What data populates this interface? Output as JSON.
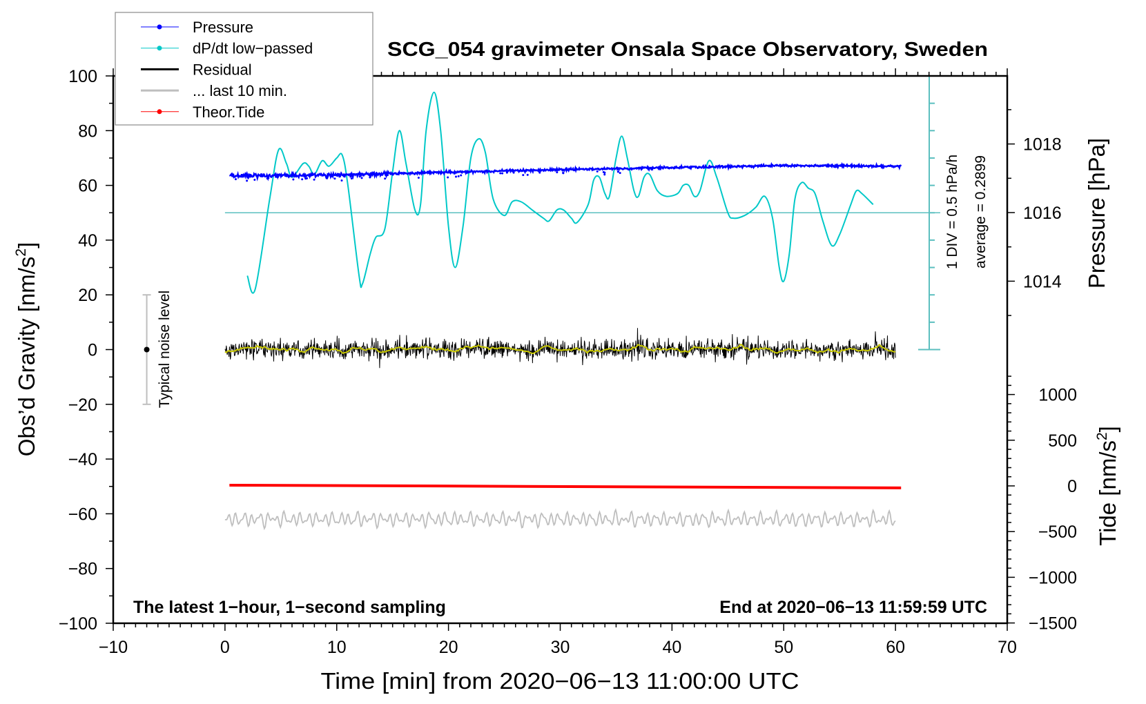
{
  "chart_data": {
    "type": "line",
    "title": "SCG_054 gravimeter Onsala Space Observatory, Sweden",
    "xlabel": "Time [min] from 2020−06−13 11:00:00 UTC",
    "ylabel": {
      "main": "Obs’d Gravity [nm/s",
      "sup": "2",
      "close": "]"
    },
    "y2label": "Pressure [hPa]",
    "y3label": {
      "main": "Tide [nm/s",
      "sup": "2",
      "close": "]"
    },
    "xlim": [
      -10,
      70
    ],
    "ylim": [
      -100,
      100
    ],
    "pressure_lim_at_gravity_0_and_100": [
      1013,
      1019
    ],
    "x_ticks": [
      "−10",
      "0",
      "10",
      "20",
      "30",
      "40",
      "50",
      "60",
      "70"
    ],
    "x_tick_values": [
      -10,
      0,
      10,
      20,
      30,
      40,
      50,
      60,
      70
    ],
    "y_ticks": [
      "−100",
      "−80",
      "−60",
      "−40",
      "−20",
      "0",
      "20",
      "40",
      "60",
      "80",
      "100"
    ],
    "y_tick_values": [
      -100,
      -80,
      -60,
      -40,
      -20,
      0,
      20,
      40,
      60,
      80,
      100
    ],
    "pressure_ticks": [
      "1014",
      "1016",
      "1018"
    ],
    "pressure_tick_values": [
      1014,
      1016,
      1018
    ],
    "tide_ticks": [
      "−1500",
      "−1000",
      "−500",
      "0",
      "500",
      "1000"
    ],
    "tide_tick_values": [
      -1500,
      -1000,
      -500,
      0,
      500,
      1000
    ],
    "legend": {
      "placement": "top-left",
      "items": [
        {
          "label": "Pressure",
          "color": "#0000ff",
          "marker": true
        },
        {
          "label": "dP/dt low−passed",
          "color": "#00c8c8",
          "marker": true
        },
        {
          "label": "Residual",
          "color": "#000000",
          "marker": false
        },
        {
          "label": "... last 10 min.",
          "color": "#bebebe",
          "marker": false
        },
        {
          "label": "Theor.Tide",
          "color": "#ff0000",
          "marker": true
        }
      ]
    },
    "annotations": {
      "bottom_left": "The latest 1−hour, 1−second sampling",
      "bottom_right": "End at 2020−06−13 11:59:59 UTC",
      "div_label": "1 DIV = 0.5 hPa/h",
      "average_label": "average = 0.2899",
      "noise_label": "Typical noise level"
    },
    "dpdt_scale": {
      "hPa_per_h_per_div": 0.5,
      "gravity_units_per_div": 10,
      "average": 0.2899,
      "reference_gravity_level": 50
    },
    "noise_bar": {
      "x": -7,
      "low": -20,
      "high": 20,
      "center": 0
    },
    "series": [
      {
        "name": "Pressure",
        "unit": "hPa",
        "color": "#0000ff",
        "trend": [
          [
            0.4,
            1017.07
          ],
          [
            10,
            1017.09
          ],
          [
            20,
            1017.18
          ],
          [
            30,
            1017.25
          ],
          [
            40,
            1017.31
          ],
          [
            50,
            1017.37
          ],
          [
            60.5,
            1017.35
          ]
        ],
        "noise_hPa": 0.03
      },
      {
        "name": "dP/dt low-passed",
        "unit": "hPa/h",
        "color": "#00c8c8",
        "points": [
          [
            2,
            -0.86
          ],
          [
            2.7,
            -1.11
          ],
          [
            4,
            0.54
          ],
          [
            4.8,
            1.44
          ],
          [
            5.5,
            1.19
          ],
          [
            6,
            0.94
          ],
          [
            7,
            1.19
          ],
          [
            7.5,
            1.14
          ],
          [
            8,
            0.99
          ],
          [
            8.7,
            1.24
          ],
          [
            9.3,
            1.14
          ],
          [
            10,
            1.29
          ],
          [
            10.5,
            1.34
          ],
          [
            11,
            0.79
          ],
          [
            12,
            -0.86
          ],
          [
            12.3,
            -1.01
          ],
          [
            13,
            -0.46
          ],
          [
            13.5,
            -0.16
          ],
          [
            14.3,
            -0.01
          ],
          [
            15,
            1.04
          ],
          [
            15.6,
            1.79
          ],
          [
            16.2,
            1.19
          ],
          [
            17,
            0.34
          ],
          [
            17.5,
            0.44
          ],
          [
            18,
            1.79
          ],
          [
            18.7,
            2.49
          ],
          [
            19.3,
            1.79
          ],
          [
            20,
            0.04
          ],
          [
            20.6,
            -0.71
          ],
          [
            21.3,
            0.04
          ],
          [
            22,
            1.29
          ],
          [
            22.7,
            1.64
          ],
          [
            23.3,
            1.39
          ],
          [
            24,
            0.54
          ],
          [
            25,
            0.24
          ],
          [
            25.7,
            0.49
          ],
          [
            26.5,
            0.49
          ],
          [
            27.5,
            0.34
          ],
          [
            28.5,
            0.19
          ],
          [
            29,
            0.14
          ],
          [
            29.7,
            0.34
          ],
          [
            30.3,
            0.34
          ],
          [
            31,
            0.19
          ],
          [
            31.5,
            0.11
          ],
          [
            32.5,
            0.44
          ],
          [
            33,
            0.89
          ],
          [
            33.5,
            0.94
          ],
          [
            34,
            0.64
          ],
          [
            34.4,
            0.59
          ],
          [
            35,
            1.29
          ],
          [
            35.5,
            1.69
          ],
          [
            36,
            1.29
          ],
          [
            36.6,
            0.69
          ],
          [
            37,
            0.59
          ],
          [
            37.5,
            0.94
          ],
          [
            38,
            0.99
          ],
          [
            38.7,
            0.69
          ],
          [
            39.5,
            0.59
          ],
          [
            40.5,
            0.64
          ],
          [
            41,
            0.79
          ],
          [
            41.5,
            0.79
          ],
          [
            42,
            0.59
          ],
          [
            42.5,
            0.69
          ],
          [
            43.3,
            1.24
          ],
          [
            44,
            0.94
          ],
          [
            45,
            0.29
          ],
          [
            45.5,
            0.19
          ],
          [
            46.5,
            0.24
          ],
          [
            47.5,
            0.39
          ],
          [
            48.3,
            0.59
          ],
          [
            49,
            0.19
          ],
          [
            49.6,
            -0.71
          ],
          [
            50,
            -0.96
          ],
          [
            50.5,
            -0.46
          ],
          [
            51,
            0.54
          ],
          [
            51.6,
            0.84
          ],
          [
            52.2,
            0.74
          ],
          [
            52.8,
            0.64
          ],
          [
            53.5,
            0.14
          ],
          [
            54.3,
            -0.31
          ],
          [
            55,
            -0.11
          ],
          [
            56,
            0.44
          ],
          [
            56.5,
            0.69
          ],
          [
            57,
            0.64
          ],
          [
            58,
            0.44
          ]
        ]
      },
      {
        "name": "Residual",
        "unit": "nm/s2",
        "color": "#000000",
        "x_range": [
          0,
          60
        ],
        "level": 0,
        "amplitude": 2.5,
        "smoothed_color": "#c8c800"
      },
      {
        "name": "... last 10 min.",
        "unit": "nm/s2",
        "color": "#bebebe",
        "x_range": [
          0,
          60
        ],
        "level": -62,
        "amplitude": 2.5
      },
      {
        "name": "Theor.Tide",
        "unit": "nm/s2",
        "color": "#ff0000",
        "points": [
          [
            0.4,
            8
          ],
          [
            60.5,
            -22
          ]
        ]
      }
    ]
  }
}
